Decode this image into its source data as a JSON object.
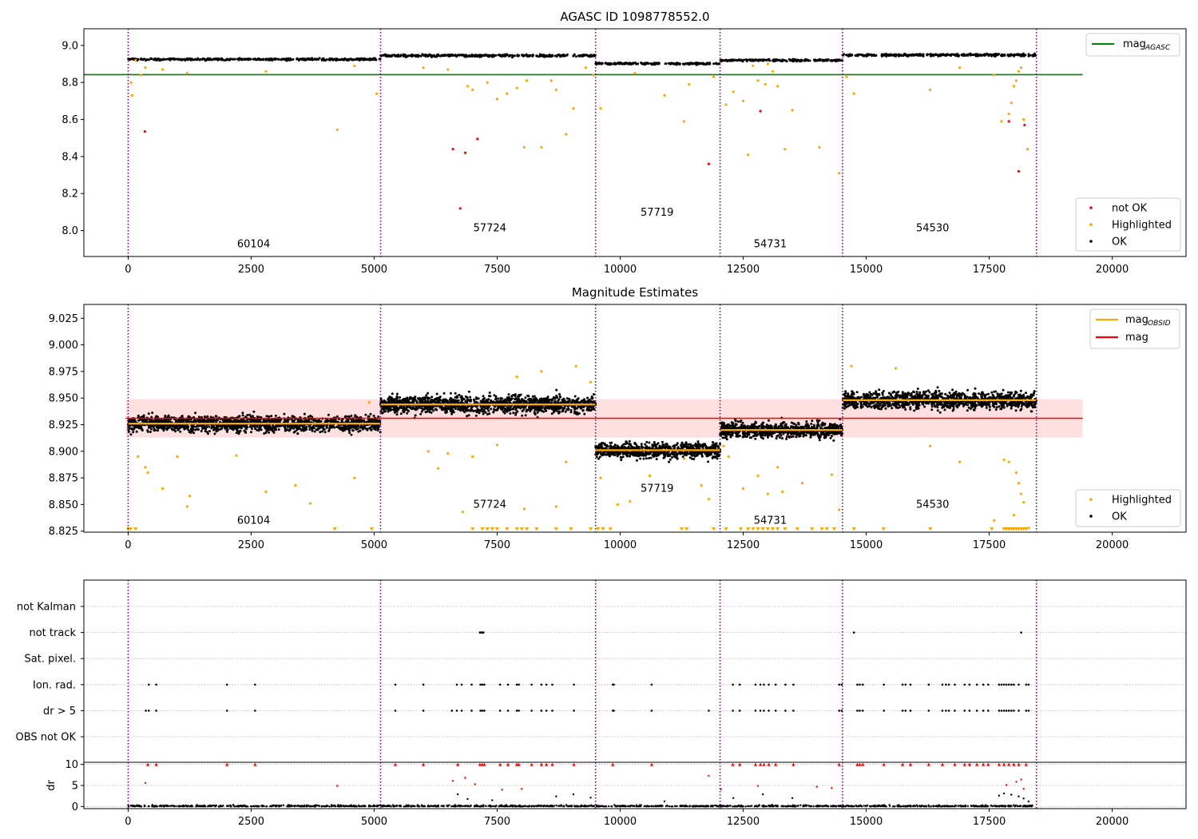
{
  "colors": {
    "black": "#000000",
    "orange": "#ffa500",
    "red": "#ff0000",
    "green": "#008000",
    "purple": "#800080",
    "band": "#ffe0e0",
    "grid": "#b0b0b0"
  },
  "chart_data": [
    {
      "type": "scatter",
      "title": "AGASC ID 1098778552.0",
      "xlabel": "",
      "ylabel": "",
      "xlim": [
        -900,
        21500
      ],
      "ylim": [
        7.86,
        9.09
      ],
      "xticks": [
        0,
        2500,
        5000,
        7500,
        10000,
        12500,
        15000,
        17500,
        20000
      ],
      "xtick_labels": [
        "0",
        "2500",
        "5000",
        "7500",
        "10000",
        "12500",
        "15000",
        "17500",
        "20000"
      ],
      "yticks": [
        8.0,
        8.2,
        8.4,
        8.6,
        8.8,
        9.0
      ],
      "ytick_labels": [
        "8.0",
        "8.2",
        "8.4",
        "8.6",
        "8.8",
        "9.0"
      ],
      "obs_boundaries": [
        0,
        5130,
        9500,
        12030,
        14520,
        18460
      ],
      "segments": [
        {
          "obsid": "60104",
          "label_x": 2550,
          "label_y": 7.91,
          "level": 8.925,
          "spread": 0.018
        },
        {
          "obsid": "57724",
          "label_x": 7350,
          "label_y": 7.995,
          "level": 8.945,
          "spread": 0.02
        },
        {
          "obsid": "57719",
          "label_x": 10750,
          "label_y": 8.08,
          "level": 8.902,
          "spread": 0.017
        },
        {
          "obsid": "54731",
          "label_x": 13050,
          "label_y": 7.91,
          "level": 8.92,
          "spread": 0.017
        },
        {
          "obsid": "54530",
          "label_x": 16350,
          "label_y": 7.995,
          "level": 8.948,
          "spread": 0.02
        }
      ],
      "mag_agasc": 8.842,
      "mag_agasc_x": [
        0,
        19400
      ],
      "outliers_not_ok": [
        [
          340,
          8.535
        ],
        [
          6600,
          8.44
        ],
        [
          6850,
          8.42
        ],
        [
          7100,
          8.495
        ],
        [
          6750,
          8.12
        ],
        [
          11800,
          8.36
        ],
        [
          12850,
          8.645
        ],
        [
          17900,
          8.59
        ],
        [
          18100,
          8.32
        ],
        [
          18220,
          8.57
        ]
      ],
      "outliers_highlighted": [
        [
          60,
          8.8
        ],
        [
          80,
          8.73
        ],
        [
          150,
          8.92
        ],
        [
          260,
          8.84
        ],
        [
          350,
          8.88
        ],
        [
          700,
          8.87
        ],
        [
          1200,
          8.85
        ],
        [
          2800,
          8.86
        ],
        [
          4250,
          8.545
        ],
        [
          4600,
          8.89
        ],
        [
          5050,
          8.74
        ],
        [
          6000,
          8.88
        ],
        [
          6500,
          8.87
        ],
        [
          6900,
          8.78
        ],
        [
          7000,
          8.76
        ],
        [
          7300,
          8.8
        ],
        [
          7500,
          8.71
        ],
        [
          7700,
          8.74
        ],
        [
          7900,
          8.77
        ],
        [
          8050,
          8.45
        ],
        [
          8100,
          8.81
        ],
        [
          8400,
          8.45
        ],
        [
          8600,
          8.81
        ],
        [
          8700,
          8.76
        ],
        [
          8900,
          8.52
        ],
        [
          9050,
          8.66
        ],
        [
          9300,
          8.88
        ],
        [
          9450,
          8.84
        ],
        [
          9600,
          8.66
        ],
        [
          10300,
          8.85
        ],
        [
          10900,
          8.73
        ],
        [
          11300,
          8.59
        ],
        [
          11400,
          8.79
        ],
        [
          11900,
          8.83
        ],
        [
          12150,
          8.68
        ],
        [
          12300,
          8.75
        ],
        [
          12500,
          8.7
        ],
        [
          12600,
          8.41
        ],
        [
          12700,
          8.89
        ],
        [
          12800,
          8.81
        ],
        [
          12950,
          8.79
        ],
        [
          13000,
          8.9
        ],
        [
          13100,
          8.86
        ],
        [
          13200,
          8.78
        ],
        [
          13350,
          8.44
        ],
        [
          13500,
          8.65
        ],
        [
          14050,
          8.45
        ],
        [
          14450,
          8.31
        ],
        [
          14600,
          8.83
        ],
        [
          14750,
          8.74
        ],
        [
          16300,
          8.76
        ],
        [
          16900,
          8.88
        ],
        [
          17600,
          8.84
        ],
        [
          17750,
          8.59
        ],
        [
          17900,
          8.63
        ],
        [
          17950,
          8.69
        ],
        [
          18000,
          8.78
        ],
        [
          18050,
          8.81
        ],
        [
          18100,
          8.86
        ],
        [
          18150,
          8.88
        ],
        [
          18200,
          8.6
        ],
        [
          18280,
          8.44
        ]
      ],
      "legend": {
        "placement": "top-right",
        "entries": [
          {
            "label": "mag",
            "sub": "AGASC",
            "color": "#008000"
          }
        ]
      },
      "legend2": {
        "placement": "bottom-right",
        "entries": [
          {
            "label": "not OK",
            "color": "#ff0000"
          },
          {
            "label": "Highlighted",
            "color": "#ffa500"
          },
          {
            "label": "OK",
            "color": "#000000"
          }
        ]
      }
    },
    {
      "type": "scatter",
      "title": "Magnitude Estimates",
      "xlabel": "",
      "ylabel": "",
      "xlim": [
        -900,
        21500
      ],
      "ylim": [
        8.824,
        9.038
      ],
      "xticks": [
        0,
        2500,
        5000,
        7500,
        10000,
        12500,
        15000,
        17500,
        20000
      ],
      "xtick_labels": [
        "0",
        "2500",
        "5000",
        "7500",
        "10000",
        "12500",
        "15000",
        "17500",
        "20000"
      ],
      "yticks": [
        8.825,
        8.85,
        8.875,
        8.9,
        8.925,
        8.95,
        8.975,
        9.0,
        9.025
      ],
      "ytick_labels": [
        "8.825",
        "8.850",
        "8.875",
        "8.900",
        "8.925",
        "8.950",
        "8.975",
        "9.000",
        "9.025"
      ],
      "obs_boundaries": [
        0,
        5130,
        9500,
        12030,
        14520,
        18460
      ],
      "mag_overall": 8.931,
      "mag_band": [
        8.913,
        8.949
      ],
      "mag_band_x": [
        0,
        19400
      ],
      "segments": [
        {
          "obsid": "60104",
          "x0": 0,
          "x1": 5130,
          "mag_obsid": 8.926,
          "spread": 0.008,
          "label_x": 2550,
          "label_y": 8.832
        },
        {
          "obsid": "57724",
          "x0": 5130,
          "x1": 9500,
          "mag_obsid": 8.944,
          "spread": 0.009,
          "label_x": 7350,
          "label_y": 8.847
        },
        {
          "obsid": "57719",
          "x0": 9500,
          "x1": 12030,
          "mag_obsid": 8.901,
          "spread": 0.008,
          "label_x": 10750,
          "label_y": 8.862
        },
        {
          "obsid": "54731",
          "x0": 12030,
          "x1": 14520,
          "mag_obsid": 8.92,
          "spread": 0.008,
          "label_x": 13050,
          "label_y": 8.832
        },
        {
          "obsid": "54530",
          "x0": 14520,
          "x1": 18460,
          "mag_obsid": 8.948,
          "spread": 0.009,
          "label_x": 16350,
          "label_y": 8.847
        }
      ],
      "outliers_highlighted": [
        [
          200,
          8.895
        ],
        [
          350,
          8.885
        ],
        [
          400,
          8.88
        ],
        [
          700,
          8.865
        ],
        [
          1000,
          8.895
        ],
        [
          1200,
          8.848
        ],
        [
          1250,
          8.858
        ],
        [
          2200,
          8.896
        ],
        [
          2800,
          8.862
        ],
        [
          3400,
          8.868
        ],
        [
          3700,
          8.851
        ],
        [
          4600,
          8.875
        ],
        [
          4900,
          8.946
        ],
        [
          6100,
          8.9
        ],
        [
          6300,
          8.884
        ],
        [
          6500,
          8.898
        ],
        [
          6800,
          8.843
        ],
        [
          7000,
          8.895
        ],
        [
          7500,
          8.906
        ],
        [
          7900,
          8.97
        ],
        [
          8050,
          8.846
        ],
        [
          8400,
          8.975
        ],
        [
          8700,
          8.848
        ],
        [
          8900,
          8.89
        ],
        [
          9100,
          8.98
        ],
        [
          9400,
          8.965
        ],
        [
          9600,
          8.875
        ],
        [
          9950,
          8.85
        ],
        [
          10200,
          8.853
        ],
        [
          10600,
          8.877
        ],
        [
          11300,
          8.893
        ],
        [
          11650,
          8.868
        ],
        [
          11800,
          8.855
        ],
        [
          12100,
          8.905
        ],
        [
          12200,
          8.895
        ],
        [
          12500,
          8.865
        ],
        [
          12800,
          8.877
        ],
        [
          13000,
          8.86
        ],
        [
          13200,
          8.885
        ],
        [
          13300,
          8.862
        ],
        [
          13700,
          8.87
        ],
        [
          14300,
          8.878
        ],
        [
          14450,
          8.845
        ],
        [
          14700,
          8.98
        ],
        [
          15600,
          8.978
        ],
        [
          16300,
          8.905
        ],
        [
          16900,
          8.89
        ],
        [
          17600,
          8.835
        ],
        [
          17800,
          8.892
        ],
        [
          17900,
          8.89
        ],
        [
          18000,
          8.84
        ],
        [
          18050,
          8.88
        ],
        [
          18100,
          8.87
        ],
        [
          18150,
          8.86
        ],
        [
          18200,
          8.852
        ],
        [
          18300,
          8.828
        ]
      ],
      "clipped_below_x": [
        0,
        50,
        150,
        4200,
        4950,
        7000,
        7200,
        7300,
        7400,
        7500,
        7700,
        7900,
        8000,
        8100,
        8300,
        8700,
        9000,
        9400,
        9550,
        9650,
        9800,
        11250,
        11350,
        11900,
        12150,
        12450,
        12600,
        12700,
        12800,
        12900,
        13000,
        13100,
        13200,
        13350,
        13600,
        13900,
        14100,
        14200,
        14350,
        14750,
        15350,
        16300,
        17550,
        17800,
        17850,
        17900,
        17950,
        18000,
        18050,
        18100,
        18150,
        18200,
        18250
      ],
      "legend": {
        "placement": "top-right",
        "entries": [
          {
            "label": "mag",
            "sub": "OBSID",
            "color": "#ffa500"
          },
          {
            "label": "mag",
            "sub": "",
            "color": "#ff0000"
          }
        ]
      },
      "legend2": {
        "placement": "bottom-right",
        "entries": [
          {
            "label": "Highlighted",
            "color": "#ffa500"
          },
          {
            "label": "OK",
            "color": "#000000"
          }
        ]
      }
    },
    {
      "type": "scatter",
      "title": "",
      "xlabel": "",
      "ylabel": "",
      "xlim": [
        -900,
        21500
      ],
      "obs_boundaries": [
        0,
        5130,
        9500,
        12030,
        14520,
        18460
      ],
      "flag_rows": [
        "not Kalman",
        "not track",
        "Sat. pixel.",
        "Ion. rad.",
        "dr > 5",
        "OBS not OK"
      ],
      "flags": {
        "not track": [
          7150,
          7180,
          7200,
          7220,
          14750,
          18150
        ],
        "Ion. rad.": [
          420,
          570,
          2010,
          2580,
          5430,
          6000,
          6680,
          6780,
          6980,
          7160,
          7200,
          7240,
          7560,
          7720,
          7900,
          7940,
          8200,
          8400,
          8500,
          8620,
          9060,
          9850,
          9870,
          10640,
          12290,
          12430,
          12750,
          12850,
          12920,
          13020,
          13160,
          13360,
          13520,
          14450,
          14500,
          14820,
          14870,
          14930,
          15360,
          15740,
          15800,
          15900,
          16270,
          16550,
          16620,
          16680,
          16800,
          17000,
          17100,
          17250,
          17380,
          17480,
          17700,
          17750,
          17800,
          17850,
          17900,
          17950,
          18000,
          18100,
          18250,
          18300
        ],
        "dr > 5": [
          360,
          420,
          570,
          2010,
          2580,
          5430,
          6000,
          6580,
          6680,
          6780,
          6980,
          7160,
          7200,
          7240,
          7560,
          7720,
          7900,
          7940,
          8200,
          8400,
          8500,
          8620,
          9060,
          9850,
          9870,
          10640,
          11800,
          12290,
          12430,
          12750,
          12850,
          12920,
          13020,
          13160,
          13360,
          13520,
          14450,
          14500,
          14820,
          14870,
          14930,
          15360,
          15740,
          15800,
          15900,
          16270,
          16550,
          16620,
          16680,
          16800,
          17000,
          17100,
          17250,
          17380,
          17480,
          17700,
          17750,
          17800,
          17850,
          17900,
          17950,
          18000,
          18100,
          18250,
          18300
        ]
      }
    },
    {
      "type": "scatter",
      "title": "",
      "xlabel": "",
      "ylabel": "dr",
      "xlim": [
        -900,
        21500
      ],
      "ylim": [
        -0.5,
        10.5
      ],
      "yticks": [
        0,
        5,
        10
      ],
      "ytick_labels": [
        "0",
        "5",
        "10"
      ],
      "xticks": [
        0,
        2500,
        5000,
        7500,
        10000,
        12500,
        15000,
        17500,
        20000
      ],
      "xtick_labels": [
        "0",
        "2500",
        "5000",
        "7500",
        "10000",
        "12500",
        "15000",
        "17500",
        "20000"
      ],
      "obs_boundaries": [
        0,
        5130,
        9500,
        12030,
        14520,
        18460
      ],
      "red_caps_x": [
        400,
        570,
        2010,
        2580,
        5430,
        6000,
        6700,
        7150,
        7200,
        7240,
        7560,
        7720,
        7900,
        7940,
        8200,
        8400,
        8500,
        8620,
        9060,
        9850,
        10640,
        12290,
        12430,
        12750,
        12850,
        12920,
        13020,
        13160,
        13520,
        14450,
        14820,
        14870,
        14930,
        15360,
        15740,
        15900,
        16270,
        16550,
        16800,
        17000,
        17100,
        17250,
        17380,
        17480,
        17700,
        17800,
        17900,
        18000,
        18100,
        18250
      ],
      "red_points": [
        [
          350,
          5.6
        ],
        [
          4250,
          4.9
        ],
        [
          6600,
          6.1
        ],
        [
          6850,
          6.8
        ],
        [
          7050,
          5.3
        ],
        [
          7600,
          4.0
        ],
        [
          8000,
          4.2
        ],
        [
          11800,
          7.3
        ],
        [
          12050,
          4.1
        ],
        [
          12800,
          4.9
        ],
        [
          14000,
          4.7
        ],
        [
          14300,
          4.4
        ],
        [
          17850,
          5.1
        ],
        [
          18050,
          5.9
        ],
        [
          18150,
          6.4
        ],
        [
          18200,
          4.2
        ]
      ],
      "black_points": [
        [
          6700,
          2.9
        ],
        [
          6900,
          1.8
        ],
        [
          7400,
          1.5
        ],
        [
          8700,
          2.4
        ],
        [
          9050,
          2.9
        ],
        [
          9400,
          2.1
        ],
        [
          10900,
          1.2
        ],
        [
          12300,
          2.0
        ],
        [
          12900,
          2.9
        ],
        [
          13500,
          2.0
        ],
        [
          17700,
          2.6
        ],
        [
          17800,
          3.1
        ],
        [
          17950,
          2.8
        ],
        [
          18100,
          2.4
        ],
        [
          18200,
          1.9
        ],
        [
          18300,
          1.2
        ]
      ]
    }
  ]
}
